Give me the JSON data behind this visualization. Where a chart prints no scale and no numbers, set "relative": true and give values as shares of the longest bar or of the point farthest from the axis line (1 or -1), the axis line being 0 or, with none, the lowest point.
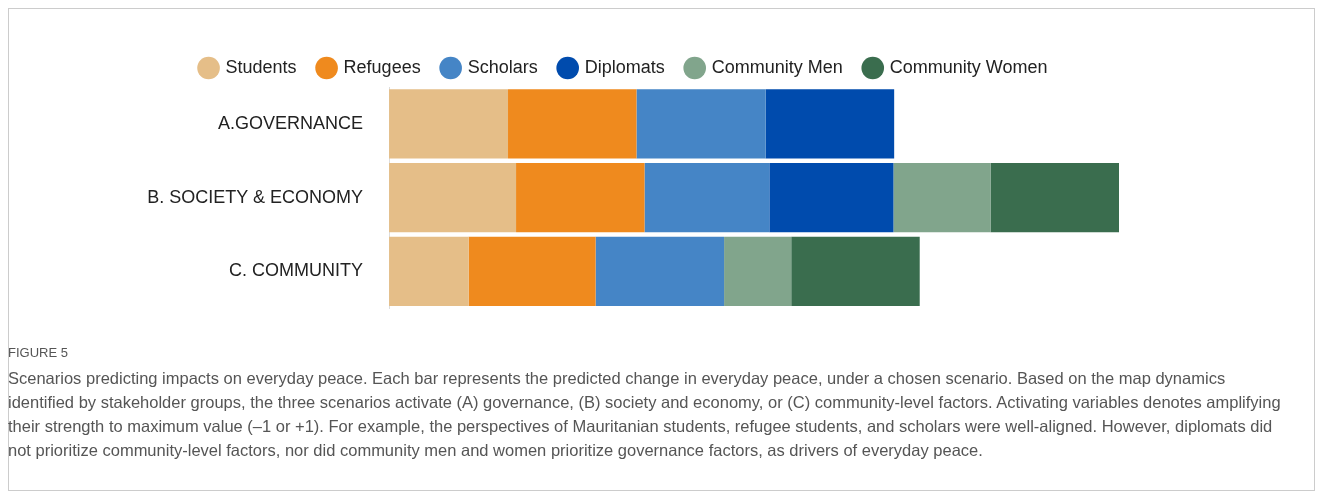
{
  "chart_data": {
    "type": "bar",
    "orientation": "horizontal",
    "stacked": true,
    "relative": true,
    "legend": "top",
    "marker": "circle",
    "categories": [
      "A.GOVERNANCE",
      "B. SOCIETY & ECONOMY",
      "C. COMMUNITY"
    ],
    "series": [
      {
        "name": "Students",
        "color": "#e5be88",
        "values": [
          0.163,
          0.174,
          0.109
        ]
      },
      {
        "name": "Refugees",
        "color": "#ef8a1e",
        "values": [
          0.176,
          0.176,
          0.174
        ]
      },
      {
        "name": "Scholars",
        "color": "#4585c6",
        "values": [
          0.177,
          0.171,
          0.176
        ]
      },
      {
        "name": "Diplomats",
        "color": "#004bad",
        "values": [
          0.176,
          0.17,
          null
        ]
      },
      {
        "name": "Community Men",
        "color": "#81a58c",
        "values": [
          null,
          0.133,
          0.092
        ]
      },
      {
        "name": "Community Women",
        "color": "#3a6d4e",
        "values": [
          null,
          0.176,
          0.176
        ]
      }
    ],
    "annotations": [
      "FIGURE 5",
      "Scenarios predicting impacts on everyday peace. Each bar represents the predicted change in everyday peace, under a chosen scenario. Based on the map dynamics identified by stakeholder groups, the three scenarios activate (A) governance, (B) society and economy, or (C) community-level factors. Activating variables denotes amplifying their strength to maximum value (–1 or +1). For example, the perspectives of Mauritanian students, refugee students, and scholars were well-aligned. However, diplomats did not prioritize community-level factors, nor did community men and women prioritize governance factors, as drivers of everyday peace."
    ]
  }
}
